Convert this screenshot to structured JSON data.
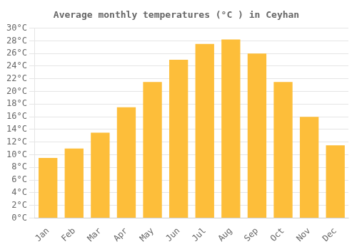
{
  "chart_data": {
    "type": "bar",
    "title": "Average monthly temperatures (°C ) in Ceyhan",
    "categories": [
      "Jan",
      "Feb",
      "Mar",
      "Apr",
      "May",
      "Jun",
      "Jul",
      "Aug",
      "Sep",
      "Oct",
      "Nov",
      "Dec"
    ],
    "values": [
      9.5,
      11.0,
      13.5,
      17.5,
      21.5,
      25.0,
      27.5,
      28.2,
      26.0,
      21.5,
      16.0,
      11.5
    ],
    "color": "#FDBE3A",
    "ylim": [
      0,
      30
    ],
    "yticks": [
      {
        "value": 0,
        "label": "0°C"
      },
      {
        "value": 2,
        "label": "2°C"
      },
      {
        "value": 4,
        "label": "4°C"
      },
      {
        "value": 6,
        "label": "6°C"
      },
      {
        "value": 8,
        "label": "8°C"
      },
      {
        "value": 10,
        "label": "10°C"
      },
      {
        "value": 12,
        "label": "12°C"
      },
      {
        "value": 14,
        "label": "14°C"
      },
      {
        "value": 16,
        "label": "16°C"
      },
      {
        "value": 18,
        "label": "18°C"
      },
      {
        "value": 20,
        "label": "20°C"
      },
      {
        "value": 22,
        "label": "22°C"
      },
      {
        "value": 24,
        "label": "24°C"
      },
      {
        "value": 26,
        "label": "26°C"
      },
      {
        "value": 28,
        "label": "28°C"
      },
      {
        "value": 30,
        "label": "30°C"
      }
    ],
    "grid": true
  }
}
